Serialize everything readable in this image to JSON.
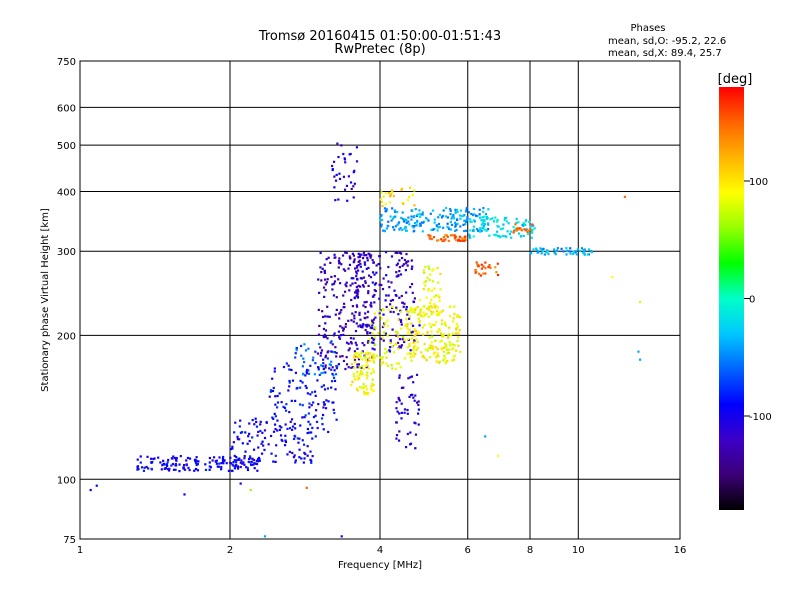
{
  "chart_data": {
    "type": "scatter",
    "title": "Tromsø 20160415 01:50:00-01:51:43",
    "subtitle": "RwPretec (8p)",
    "xlabel": "Frequency [MHz]",
    "ylabel": "Stationary phase Virtual Height [km]",
    "x_scale": "log",
    "y_scale": "log",
    "xlim": [
      1,
      16
    ],
    "ylim": [
      75,
      750
    ],
    "x_ticks": [
      1,
      2,
      4,
      6,
      8,
      10,
      16
    ],
    "x_tick_labels": [
      "1",
      "2",
      "4",
      "6",
      "8",
      "10",
      "16"
    ],
    "y_ticks": [
      75,
      100,
      200,
      300,
      400,
      500,
      600,
      750
    ],
    "y_tick_labels": [
      "75",
      "100",
      "200",
      "300",
      "400",
      "500",
      "600",
      "750"
    ],
    "grid": true,
    "phase_legend": {
      "title": "Phases",
      "lines": [
        "mean, sd,O: -95.2, 22.6",
        "mean, sd,X:  89.4, 25.7"
      ]
    },
    "colorbar": {
      "label": "[deg]",
      "range": [
        -180,
        180
      ],
      "ticks": [
        100,
        0,
        -100
      ],
      "tick_labels": [
        "100",
        "0",
        "-100"
      ],
      "colormap": [
        "#000000",
        "#3c0078",
        "#3c00c8",
        "#0000ff",
        "#0064ff",
        "#00c8ff",
        "#00ffc8",
        "#00ff00",
        "#96ff00",
        "#ffff00",
        "#ffb400",
        "#ff6400",
        "#ff0000"
      ]
    },
    "clusters": [
      {
        "name": "",
        "x_range": [
          1.3,
          2.3
        ],
        "y_range": [
          104,
          112
        ],
        "phase": -95,
        "count": 160
      },
      {
        "name": "",
        "x_range": [
          2.0,
          3.0
        ],
        "y_range": [
          108,
          135
        ],
        "phase": -95,
        "count": 120
      },
      {
        "name": "",
        "x_range": [
          2.4,
          3.3
        ],
        "y_range": [
          125,
          175
        ],
        "phase": -90,
        "count": 110
      },
      {
        "name": "",
        "x_range": [
          2.7,
          3.3
        ],
        "y_range": [
          165,
          195
        ],
        "phase": -60,
        "count": 40
      },
      {
        "name": "",
        "x_range": [
          3.0,
          3.9
        ],
        "y_range": [
          170,
          300
        ],
        "phase": -120,
        "count": 230
      },
      {
        "name": "",
        "x_range": [
          3.5,
          4.7
        ],
        "y_range": [
          185,
          300
        ],
        "phase": -115,
        "count": 190
      },
      {
        "name": "",
        "x_range": [
          3.5,
          3.9
        ],
        "y_range": [
          150,
          185
        ],
        "phase": 90,
        "count": 90
      },
      {
        "name": "",
        "x_range": [
          3.8,
          4.5
        ],
        "y_range": [
          170,
          230
        ],
        "phase": 85,
        "count": 60
      },
      {
        "name": "",
        "x_range": [
          4.5,
          5.8
        ],
        "y_range": [
          175,
          230
        ],
        "phase": 90,
        "count": 200
      },
      {
        "name": "",
        "x_range": [
          4.8,
          5.3
        ],
        "y_range": [
          220,
          280
        ],
        "phase": 85,
        "count": 50
      },
      {
        "name": "",
        "x_range": [
          4.0,
          6.6
        ],
        "y_range": [
          330,
          370
        ],
        "phase": -40,
        "count": 190
      },
      {
        "name": "",
        "x_range": [
          6.0,
          8.2
        ],
        "y_range": [
          320,
          355
        ],
        "phase": -20,
        "count": 90
      },
      {
        "name": "",
        "x_range": [
          5.0,
          6.0
        ],
        "y_range": [
          315,
          325
        ],
        "phase": 150,
        "count": 40
      },
      {
        "name": "",
        "x_range": [
          6.2,
          6.9
        ],
        "y_range": [
          265,
          285
        ],
        "phase": 150,
        "count": 25
      },
      {
        "name": "",
        "x_range": [
          7.4,
          8.1
        ],
        "y_range": [
          328,
          342
        ],
        "phase": 150,
        "count": 15
      },
      {
        "name": "",
        "x_range": [
          8.0,
          10.8
        ],
        "y_range": [
          295,
          305
        ],
        "phase": -40,
        "count": 55
      },
      {
        "name": "",
        "x_range": [
          3.2,
          3.6
        ],
        "y_range": [
          380,
          510
        ],
        "phase": -110,
        "count": 35
      },
      {
        "name": "",
        "x_range": [
          4.3,
          4.8
        ],
        "y_range": [
          115,
          170
        ],
        "phase": -110,
        "count": 50
      },
      {
        "name": "",
        "x_range": [
          4.0,
          4.7
        ],
        "y_range": [
          370,
          410
        ],
        "phase": 100,
        "count": 25
      }
    ],
    "outliers": [
      {
        "x": 1.05,
        "y": 95,
        "phase": -90
      },
      {
        "x": 1.08,
        "y": 97,
        "phase": -90
      },
      {
        "x": 1.62,
        "y": 93,
        "phase": -100
      },
      {
        "x": 2.35,
        "y": 76,
        "phase": -40
      },
      {
        "x": 2.85,
        "y": 96,
        "phase": 150
      },
      {
        "x": 3.35,
        "y": 76,
        "phase": -110
      },
      {
        "x": 12.4,
        "y": 390,
        "phase": 150
      },
      {
        "x": 13.3,
        "y": 235,
        "phase": 100
      },
      {
        "x": 13.2,
        "y": 185,
        "phase": -40
      },
      {
        "x": 13.3,
        "y": 178,
        "phase": -40
      },
      {
        "x": 11.7,
        "y": 265,
        "phase": 90
      },
      {
        "x": 6.5,
        "y": 123,
        "phase": -40
      },
      {
        "x": 6.9,
        "y": 112,
        "phase": 90
      },
      {
        "x": 2.1,
        "y": 98,
        "phase": -100
      },
      {
        "x": 2.2,
        "y": 95,
        "phase": 60
      },
      {
        "x": 4.8,
        "y": 210,
        "phase": -90
      }
    ]
  }
}
